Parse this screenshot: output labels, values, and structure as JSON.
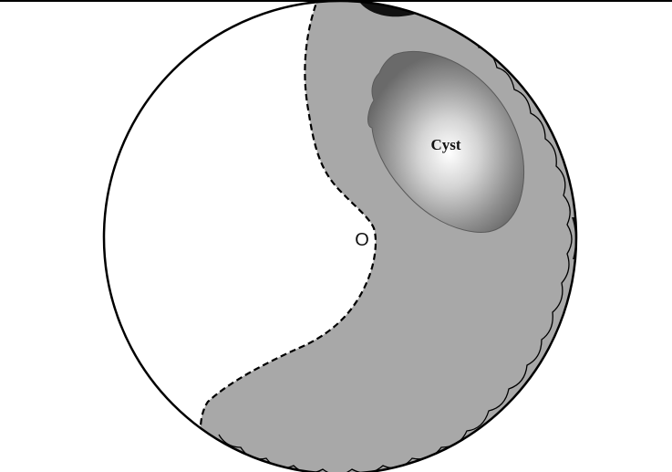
{
  "labels": {
    "cyst": "Cyst",
    "origin": "O"
  },
  "colors": {
    "background": "#ffffff",
    "outline": "#000000",
    "shaded_region": "#a8a8a8",
    "cyst_center": "#ffffff",
    "cyst_edge": "#6e6e6e",
    "dark_spot": "#111111"
  }
}
